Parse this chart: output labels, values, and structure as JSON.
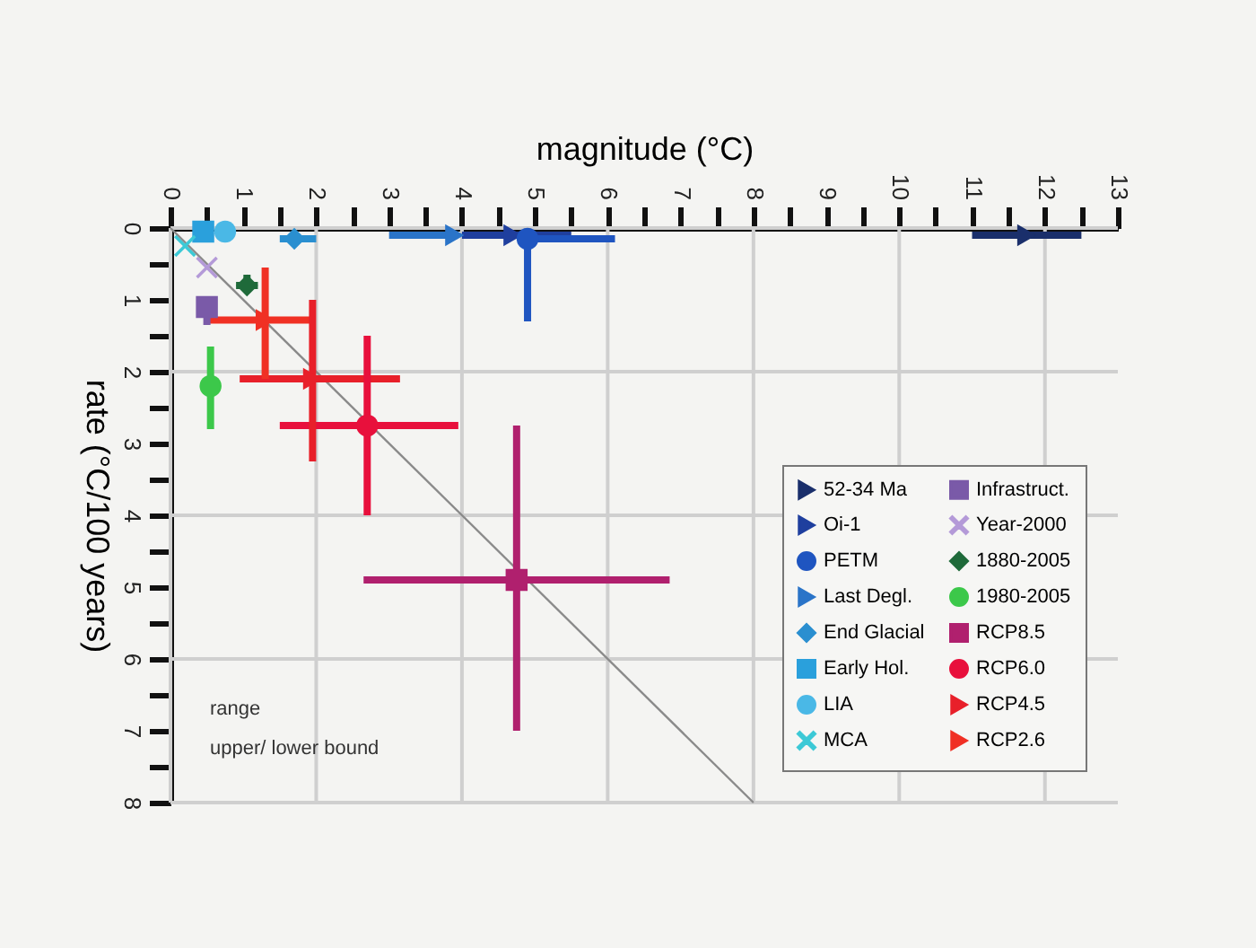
{
  "chart_data": {
    "type": "scatter",
    "xlabel": "magnitude (°C)",
    "ylabel": "rate (°C/100 years)",
    "xlim": [
      0,
      13
    ],
    "xticks": [
      0,
      {
        "value": 0.5,
        "label": null
      },
      1,
      {
        "value": 1.5,
        "label": null
      },
      2,
      {
        "value": 2.5,
        "label": null
      },
      3,
      {
        "value": 3.5,
        "label": null
      },
      4,
      {
        "value": 4.5,
        "label": null
      },
      5,
      {
        "value": 5.5,
        "label": null
      },
      6,
      {
        "value": 6.5,
        "label": null
      },
      7,
      {
        "value": 7.5,
        "label": null
      },
      8,
      {
        "value": 8.5,
        "label": null
      },
      9,
      {
        "value": 9.5,
        "label": null
      },
      10,
      {
        "value": 10.5,
        "label": null
      },
      11,
      {
        "value": 11.5,
        "label": null
      },
      12,
      {
        "value": 12.5,
        "label": null
      },
      13
    ],
    "ylim": [
      8,
      0
    ],
    "yticks": [
      0,
      {
        "value": 0.5,
        "label": null
      },
      1,
      {
        "value": 1.5,
        "label": null
      },
      2,
      {
        "value": 2.5,
        "label": null
      },
      3,
      {
        "value": 3.5,
        "label": null
      },
      4,
      {
        "value": 4.5,
        "label": null
      },
      5,
      {
        "value": 5.5,
        "label": null
      },
      6,
      {
        "value": 6.5,
        "label": null
      },
      7,
      {
        "value": 7.5,
        "label": null
      },
      8
    ],
    "grid": true,
    "legend": "bottom right",
    "annotations": [
      "range",
      "upper/ lower bound"
    ],
    "series": [
      {
        "name": "52-34 Ma",
        "color": "#1a2f6b",
        "marker": "triangle",
        "x": [
          11.75
        ],
        "values": [
          0.1
        ],
        "xerrors": [
          [
            11.0,
            12.5
          ]
        ]
      },
      {
        "name": "Oi-1",
        "color": "#1f3f9e",
        "marker": "triangle",
        "x": [
          4.7
        ],
        "values": [
          0.1
        ],
        "xerrors": [
          [
            4.0,
            5.5
          ]
        ]
      },
      {
        "name": "PETM",
        "color": "#1f55c0",
        "marker": "circle",
        "x": [
          4.9
        ],
        "values": [
          0.15
        ],
        "xerrors": [
          [
            4.9,
            6.1
          ]
        ],
        "errors": [
          [
            0.15,
            1.3
          ]
        ]
      },
      {
        "name": "Last Degl.",
        "color": "#2a74c8",
        "marker": "triangle",
        "x": [
          3.9
        ],
        "values": [
          0.1
        ],
        "xerrors": [
          [
            3.0,
            3.9
          ]
        ]
      },
      {
        "name": "End Glacial",
        "color": "#2a8fd0",
        "marker": "diamond",
        "x": [
          1.7
        ],
        "values": [
          0.15
        ],
        "xerrors": [
          [
            1.5,
            2.0
          ]
        ]
      },
      {
        "name": "Early Hol.",
        "color": "#2aa0dc",
        "marker": "square",
        "x": [
          0.45
        ],
        "values": [
          0.05
        ]
      },
      {
        "name": "LIA",
        "color": "#4ab8e6",
        "marker": "circle",
        "x": [
          0.75
        ],
        "values": [
          0.05
        ]
      },
      {
        "name": "MCA",
        "color": "#3cc9d6",
        "marker": "cross",
        "x": [
          0.2
        ],
        "values": [
          0.25
        ]
      },
      {
        "name": "Infrastruct.",
        "color": "#7a5aa8",
        "marker": "square",
        "x": [
          0.5
        ],
        "values": [
          1.1
        ],
        "errors": [
          [
            0.95,
            1.35
          ]
        ]
      },
      {
        "name": "Year-2000",
        "color": "#b49ad8",
        "marker": "cross",
        "x": [
          0.5
        ],
        "values": [
          0.55
        ]
      },
      {
        "name": "1880-2005",
        "color": "#1f6a3a",
        "marker": "diamond",
        "x": [
          1.05
        ],
        "values": [
          0.8
        ],
        "errors": [
          [
            0.65,
            0.9
          ]
        ],
        "xerrors": [
          [
            0.9,
            1.2
          ]
        ]
      },
      {
        "name": "1980-2005",
        "color": "#3cc84a",
        "marker": "circle",
        "x": [
          0.55
        ],
        "values": [
          2.2
        ],
        "errors": [
          [
            1.65,
            2.8
          ]
        ]
      },
      {
        "name": "RCP8.5",
        "color": "#b0206e",
        "marker": "square",
        "x": [
          4.75
        ],
        "values": [
          4.9
        ],
        "xerrors": [
          [
            2.65,
            6.85
          ]
        ],
        "errors": [
          [
            2.75,
            7.0
          ]
        ]
      },
      {
        "name": "RCP6.0",
        "color": "#e8103c",
        "marker": "circle",
        "x": [
          2.7
        ],
        "values": [
          2.75
        ],
        "xerrors": [
          [
            1.5,
            3.95
          ]
        ],
        "errors": [
          [
            1.5,
            4.0
          ]
        ]
      },
      {
        "name": "RCP4.5",
        "color": "#e8202a",
        "marker": "triangle",
        "x": [
          1.95
        ],
        "values": [
          2.1
        ],
        "xerrors": [
          [
            0.95,
            3.15
          ]
        ],
        "errors": [
          [
            1.0,
            3.25
          ]
        ]
      },
      {
        "name": "RCP2.6",
        "color": "#f03024",
        "marker": "triangle",
        "x": [
          1.3
        ],
        "values": [
          1.28
        ],
        "xerrors": [
          [
            0.5,
            1.95
          ]
        ],
        "errors": [
          [
            0.55,
            2.1
          ]
        ]
      },
      {
        "type": "line",
        "color": "#8a8a8a",
        "x": [
          0,
          8
        ],
        "values": [
          0,
          8
        ]
      }
    ]
  }
}
